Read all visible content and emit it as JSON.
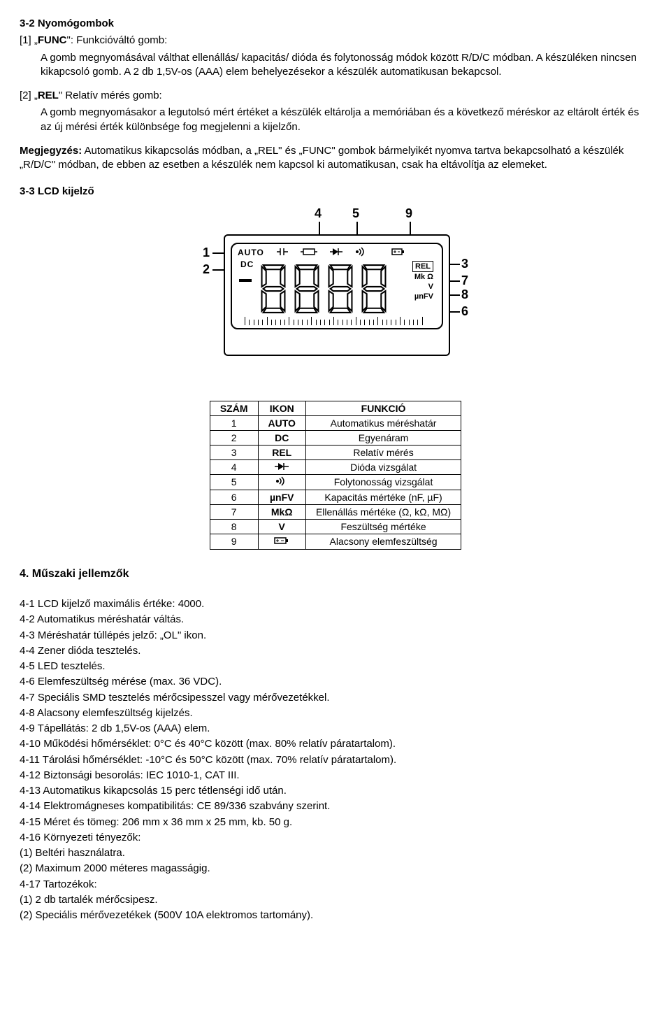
{
  "s32": {
    "title": "3-2 Nyomógombok",
    "item1_lead": "[1] „",
    "item1_key": "FUNC",
    "item1_tail": "\": Funkcióváltó gomb:",
    "item1_p1": "A gomb megnyomásával válthat ellenállás/ kapacitás/ dióda és folytonosság módok között R/D/C módban. A készüléken nincsen kikapcsoló gomb. A 2 db 1,5V-os (AAA) elem behelyezésekor a készülék automatikusan bekapcsol.",
    "item2_lead": "[2] „",
    "item2_key": "REL",
    "item2_tail": "\" Relatív mérés gomb:",
    "item2_p1": "A gomb megnyomásakor a legutolsó mért értéket a készülék eltárolja a memóriában és a következő méréskor az eltárolt érték és az új mérési érték különbsége fog megjelenni a kijelzőn.",
    "note_lead": "Megjegyzés:",
    "note_body": " Automatikus kikapcsolás módban, a „REL\" és „FUNC\" gombok bármelyikét nyomva tartva bekapcsolható a készülék „R/D/C\" módban, de ebben az esetben a készülék nem kapcsol ki automatikusan, csak ha eltávolítja az elemeket."
  },
  "s33": {
    "title": "3-3 LCD kijelző"
  },
  "lcd": {
    "top_labels": [
      "4",
      "5",
      "9"
    ],
    "left_labels": [
      "1",
      "2"
    ],
    "right_labels": [
      "3",
      "7",
      "8",
      "6"
    ],
    "auto": "AUTO",
    "dc": "DC",
    "rel": "REL",
    "mkohm": "Mk Ω",
    "v": "V",
    "unfv": "µnFV"
  },
  "table": {
    "headers": [
      "SZÁM",
      "IKON",
      "FUNKCIÓ"
    ],
    "rows": [
      [
        "1",
        "AUTO",
        "Automatikus méréshatár"
      ],
      [
        "2",
        "DC",
        "Egyenáram"
      ],
      [
        "3",
        "REL",
        "Relatív mérés"
      ],
      [
        "4",
        "__DIODE__",
        "Dióda vizsgálat"
      ],
      [
        "5",
        "__CONT__",
        "Folytonosság vizsgálat"
      ],
      [
        "6",
        "µnFV",
        "Kapacitás mértéke (nF, µF)"
      ],
      [
        "7",
        "MkΩ",
        "Ellenállás mértéke (Ω, kΩ, MΩ)"
      ],
      [
        "8",
        "V",
        "Feszültség mértéke"
      ],
      [
        "9",
        "__BATT__",
        "Alacsony elemfeszültség"
      ]
    ]
  },
  "s4": {
    "title": "4. Műszaki jellemzők",
    "items": [
      "4-1 LCD kijelző maximális értéke: 4000.",
      "4-2 Automatikus méréshatár váltás.",
      "4-3 Méréshatár túllépés jelző: „OL\" ikon.",
      "4-4 Zener dióda tesztelés.",
      "4-5 LED tesztelés.",
      "4-6 Elemfeszültség mérése (max. 36 VDC).",
      "4-7 Speciális SMD tesztelés mérőcsipesszel vagy mérővezetékkel.",
      "4-8 Alacsony elemfeszültség kijelzés.",
      "4-9 Tápellátás: 2 db 1,5V-os (AAA) elem.",
      "4-10 Működési hőmérséklet: 0°C és 40°C között (max. 80% relatív páratartalom).",
      "4-11 Tárolási hőmérséklet: -10°C és 50°C között (max. 70% relatív páratartalom).",
      "4-12 Biztonsági besorolás: IEC 1010-1, CAT III.",
      "4-13 Automatikus kikapcsolás 15 perc tétlenségi idő után.",
      "4-14 Elektromágneses kompatibilitás: CE 89/336 szabvány szerint.",
      "4-15 Méret és tömeg: 206 mm x 36 mm x 25 mm, kb. 50 g.",
      "4-16 Környezeti tényezők:"
    ],
    "env": [
      "(1) Beltéri használatra.",
      "(2) Maximum 2000 méteres magasságig."
    ],
    "acc_title": "4-17 Tartozékok:",
    "acc": [
      "(1) 2 db tartalék mérőcsipesz.",
      "(2) Speciális mérővezetékek (500V 10A elektromos tartomány)."
    ]
  }
}
